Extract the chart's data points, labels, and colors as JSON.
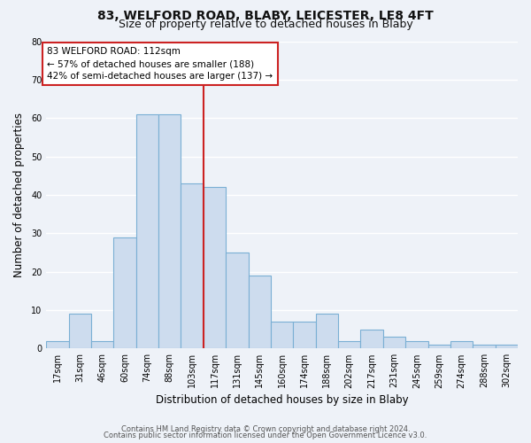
{
  "title": "83, WELFORD ROAD, BLABY, LEICESTER, LE8 4FT",
  "subtitle": "Size of property relative to detached houses in Blaby",
  "xlabel": "Distribution of detached houses by size in Blaby",
  "ylabel": "Number of detached properties",
  "bar_labels": [
    "17sqm",
    "31sqm",
    "46sqm",
    "60sqm",
    "74sqm",
    "88sqm",
    "103sqm",
    "117sqm",
    "131sqm",
    "145sqm",
    "160sqm",
    "174sqm",
    "188sqm",
    "202sqm",
    "217sqm",
    "231sqm",
    "245sqm",
    "259sqm",
    "274sqm",
    "288sqm",
    "302sqm"
  ],
  "bar_values": [
    2,
    9,
    2,
    29,
    61,
    61,
    43,
    42,
    25,
    19,
    7,
    7,
    9,
    2,
    5,
    3,
    2,
    1,
    2,
    1,
    1
  ],
  "bar_color": "#cddcee",
  "bar_edge_color": "#7aafd4",
  "property_line_index": 7,
  "annotation_line1": "83 WELFORD ROAD: 112sqm",
  "annotation_line2": "← 57% of detached houses are smaller (188)",
  "annotation_line3": "42% of semi-detached houses are larger (137) →",
  "annotation_box_color": "#ffffff",
  "annotation_box_edge_color": "#cc2222",
  "property_line_color": "#cc2222",
  "footer1": "Contains HM Land Registry data © Crown copyright and database right 2024.",
  "footer2": "Contains public sector information licensed under the Open Government Licence v3.0.",
  "yticks": [
    0,
    10,
    20,
    30,
    40,
    50,
    60,
    70,
    80
  ],
  "ylim": [
    0,
    80
  ],
  "bg_color": "#eef2f8",
  "grid_color": "#ffffff",
  "title_fontsize": 10,
  "subtitle_fontsize": 9,
  "axis_label_fontsize": 8.5,
  "tick_fontsize": 7,
  "annotation_fontsize": 7.5,
  "footer_fontsize": 6
}
